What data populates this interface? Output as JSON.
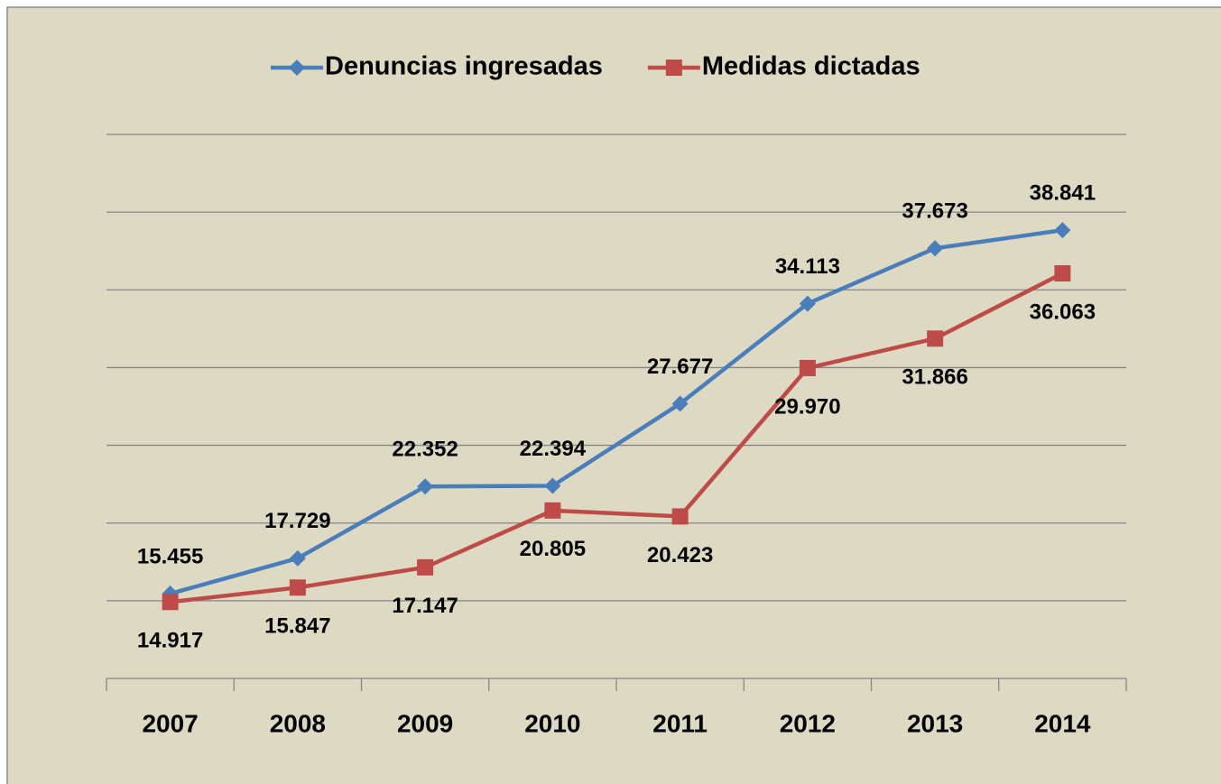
{
  "chart_data": {
    "type": "line",
    "categories": [
      "2007",
      "2008",
      "2009",
      "2010",
      "2011",
      "2012",
      "2013",
      "2014"
    ],
    "series": [
      {
        "name": "Denuncias ingresadas",
        "color": "#4a7ebb",
        "marker": "diamond",
        "values": [
          15455,
          17729,
          22352,
          22394,
          27677,
          34113,
          37673,
          38841
        ],
        "value_labels": [
          "15.455",
          "17.729",
          "22.352",
          "22.394",
          "27.677",
          "34.113",
          "37.673",
          "38.841"
        ]
      },
      {
        "name": "Medidas dictadas",
        "color": "#be4b48",
        "marker": "square",
        "values": [
          14917,
          15847,
          17147,
          20805,
          20423,
          29970,
          31866,
          36063
        ],
        "value_labels": [
          "14.917",
          "15.847",
          "17.147",
          "20.805",
          "20.423",
          "29.970",
          "31.866",
          "36.063"
        ]
      }
    ],
    "ylim": [
      10000,
      45000
    ],
    "yticks": [
      10000,
      15000,
      20000,
      25000,
      30000,
      35000,
      40000,
      45000
    ],
    "grid": true,
    "legend": "top"
  }
}
